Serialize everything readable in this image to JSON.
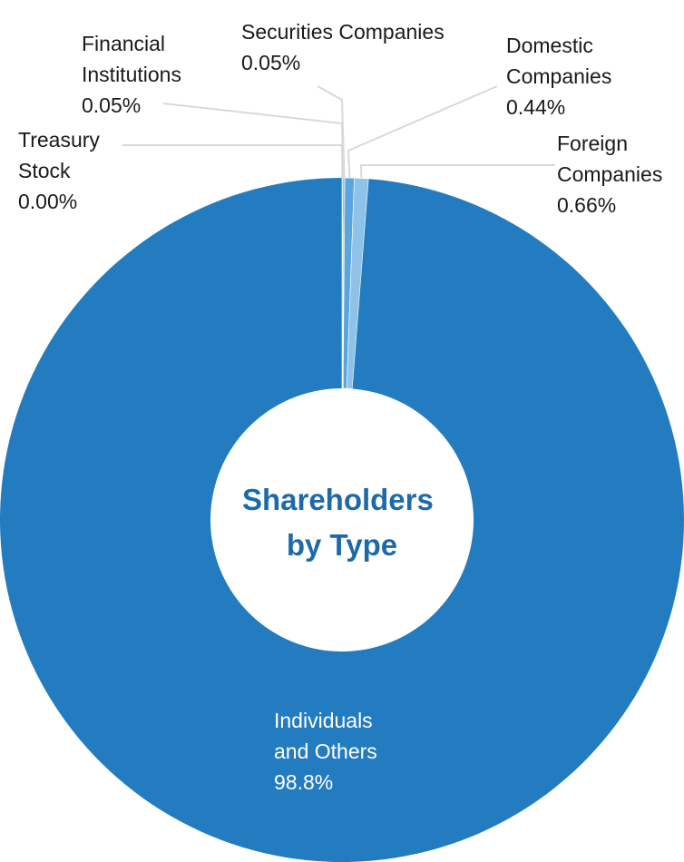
{
  "chart_data": {
    "type": "pie",
    "title": "Shareholders by Type",
    "title_lines": [
      "Shareholders",
      "by Type"
    ],
    "unit": "%",
    "slices": [
      {
        "name": "Individuals and Others",
        "name_lines": [
          "Individuals",
          "and Others"
        ],
        "value": 98.8,
        "label": "98.8%",
        "color": "#237cbf"
      },
      {
        "name": "Treasury Stock",
        "name_lines": [
          "Treasury",
          "Stock"
        ],
        "value": 0.0,
        "label": "0.00%",
        "color": "#237cbf"
      },
      {
        "name": "Financial Institutions",
        "name_lines": [
          "Financial",
          "Institutions"
        ],
        "value": 0.05,
        "label": "0.05%",
        "color": "#237cbf"
      },
      {
        "name": "Securities Companies",
        "name_lines": [
          "Securities Companies"
        ],
        "value": 0.05,
        "label": "0.05%",
        "color": "#5aa5dc"
      },
      {
        "name": "Domestic Companies",
        "name_lines": [
          "Domestic",
          "Companies"
        ],
        "value": 0.44,
        "label": "0.44%",
        "color": "#5aa5dc"
      },
      {
        "name": "Foreign Companies",
        "name_lines": [
          "Foreign",
          "Companies"
        ],
        "value": 0.66,
        "label": "0.66%",
        "color": "#8ec2e8"
      }
    ],
    "colors": {
      "primary": "#237cbf",
      "light": "#8ec2e8",
      "title": "#1e6aa8",
      "leader_line": "#d9d9d9"
    }
  }
}
